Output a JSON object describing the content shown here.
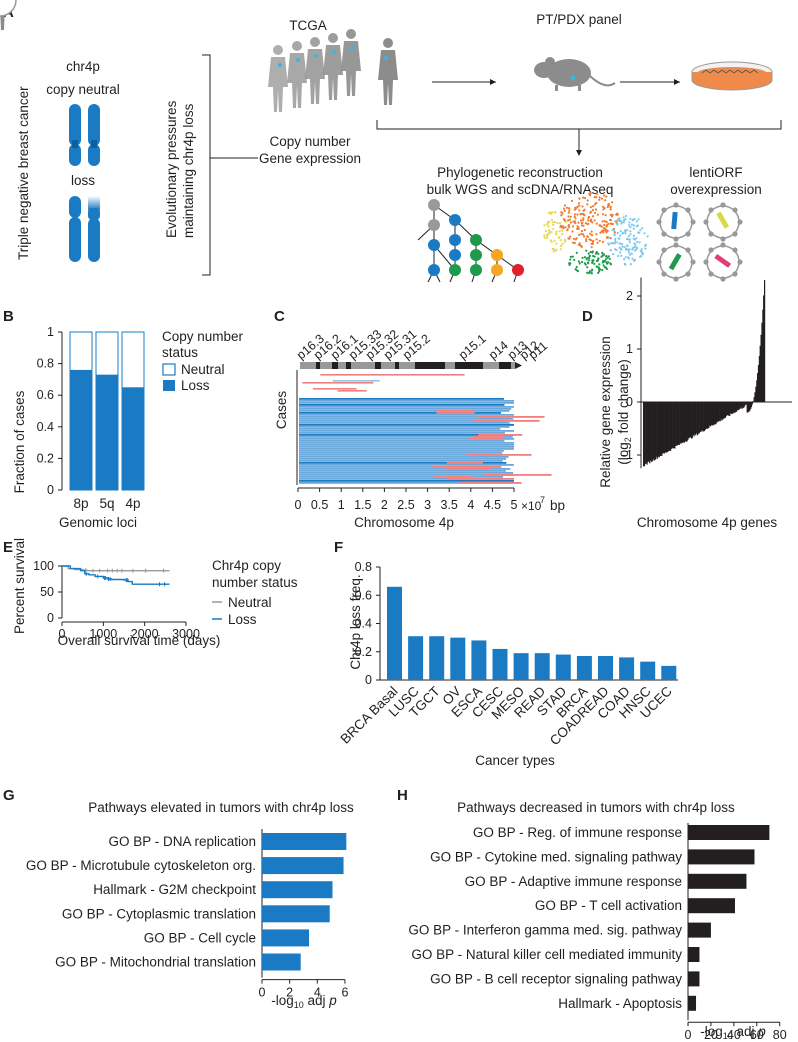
{
  "colors": {
    "blue": "#1a7bc4",
    "gray": "#999999",
    "dark": "#231f20",
    "green": "#1e9a4c",
    "orange": "#f5a623",
    "red": "#e0202b",
    "pink": "#f08080",
    "lightblue": "#8ec6ea",
    "figure_gray": "#8c8c8c"
  },
  "panelA": {
    "letter": "A",
    "tnbc_label": "Triple negative breast cancer",
    "chr_title_line1": "chr4p",
    "chr_title_line2": "copy neutral",
    "loss_label": "loss",
    "evo_line1": "Evolutionary pressures",
    "evo_line2": "maintaining chr4p loss",
    "tcga_title": "TCGA",
    "tcga_line1": "Copy number",
    "tcga_line2": "Gene expression",
    "ptpdx_title": "PT/PDX panel",
    "phylo_line1": "Phylogenetic reconstruction",
    "phylo_line2": "bulk WGS and scDNA/RNAseq",
    "lenti_line1": "lentiORF",
    "lenti_line2": "overexpression"
  },
  "panelB": {
    "letter": "B",
    "chart_data": {
      "type": "bar",
      "stacked": true,
      "categories": [
        "8p",
        "5q",
        "4p"
      ],
      "series": [
        {
          "name": "Loss",
          "values": [
            0.76,
            0.73,
            0.65
          ]
        },
        {
          "name": "Neutral",
          "values": [
            0.24,
            0.27,
            0.35
          ]
        }
      ],
      "ylabel": "Fraction of cases",
      "xlabel": "Genomic loci",
      "ylim": [
        0,
        1
      ],
      "yticks": [
        "0",
        "0.2",
        "0.4",
        "0.6",
        "0.8",
        "1"
      ],
      "legend_title_line1": "Copy number",
      "legend_title_line2": "status"
    }
  },
  "panelC": {
    "letter": "C",
    "chart_data": {
      "type": "heatmap",
      "bands": [
        "p16.3",
        "p16.2",
        "p16.1",
        "p15.33",
        "p15.32",
        "p15.31",
        "p15.2",
        "p15.1",
        "p14",
        "p13",
        "p12",
        "p11"
      ],
      "xticks": [
        "0",
        "0.5",
        "1",
        "1.5",
        "2",
        "2.5",
        "3",
        "3.5",
        "4",
        "4.5",
        "5"
      ],
      "x_unit_mult": "×10",
      "x_unit_exp": "7",
      "x_unit": "bp",
      "xlabel": "Chromosome 4p",
      "ylabel": "Cases",
      "xlim": [
        0,
        5
      ]
    }
  },
  "panelD": {
    "letter": "D",
    "chart_data": {
      "type": "bar",
      "ylabel_line1": "Relative gene expression",
      "ylabel_line2_pre": "(log",
      "ylabel_line2_sub": "2",
      "ylabel_line2_post": " fold change)",
      "xlabel": "Chromosome 4p genes",
      "yticks": [
        "2",
        "1",
        "0",
        "-1"
      ],
      "ylim": [
        -1.3,
        2.4
      ]
    }
  },
  "panelE": {
    "letter": "E",
    "chart_data": {
      "type": "line",
      "xlabel": "Overall survival time (days)",
      "ylabel": "Percent survival",
      "xticks": [
        "0",
        "1000",
        "2000",
        "3000"
      ],
      "yticks": [
        "0",
        "50",
        "100"
      ],
      "xlim": [
        0,
        3000
      ],
      "ylim": [
        0,
        100
      ],
      "legend_title_line1": "Chr4p copy",
      "legend_title_line2": "number status",
      "series": [
        {
          "name": "Neutral",
          "x": [
            0,
            150,
            300,
            500,
            600,
            2600
          ],
          "y": [
            100,
            95,
            93,
            92,
            91,
            91
          ]
        },
        {
          "name": "Loss",
          "x": [
            0,
            200,
            450,
            550,
            650,
            800,
            1000,
            1100,
            1200,
            1500,
            1600,
            1700,
            2600
          ],
          "y": [
            100,
            95,
            91,
            85,
            83,
            80,
            77,
            75,
            74,
            73,
            70,
            65,
            65
          ]
        }
      ]
    }
  },
  "panelF": {
    "letter": "F",
    "chart_data": {
      "type": "bar",
      "categories": [
        "BRCA Basal",
        "LUSC",
        "TGCT",
        "OV",
        "ESCA",
        "CESC",
        "MESO",
        "READ",
        "STAD",
        "BRCA",
        "COADREAD",
        "COAD",
        "HNSC",
        "UCEC"
      ],
      "values": [
        0.66,
        0.31,
        0.31,
        0.3,
        0.28,
        0.22,
        0.19,
        0.19,
        0.18,
        0.17,
        0.17,
        0.16,
        0.13,
        0.1
      ],
      "ylabel": "Chr4p loss freq.",
      "xlabel": "Cancer types",
      "yticks": [
        "0",
        "0.2",
        "0.4",
        "0.6",
        "0.8"
      ],
      "ylim": [
        0,
        0.8
      ]
    }
  },
  "panelG": {
    "letter": "G",
    "chart_data": {
      "type": "bar",
      "orientation": "horizontal",
      "title": "Pathways elevated in tumors with chr4p loss",
      "categories": [
        "GO BP - DNA replication",
        "GO BP - Microtubule cytoskeleton org.",
        "Hallmark - G2M checkpoint",
        "GO BP - Cytoplasmic translation",
        "GO BP - Cell cycle",
        "GO BP - Mitochondrial translation"
      ],
      "values": [
        6.1,
        5.9,
        5.1,
        4.9,
        3.4,
        2.8
      ],
      "xticks": [
        "0",
        "2",
        "4",
        "6"
      ],
      "xlim": [
        0,
        6.8
      ],
      "xlabel_pre": "-log",
      "xlabel_sub": "10",
      "xlabel_mid": " adj ",
      "xlabel_p": "p"
    }
  },
  "panelH": {
    "letter": "H",
    "chart_data": {
      "type": "bar",
      "orientation": "horizontal",
      "title": "Pathways decreased in tumors with chr4p loss",
      "categories": [
        "GO BP - Reg. of immune response",
        "GO BP - Cytokine med. signaling pathway",
        "GO BP - Adaptive immune response",
        "GO BP - T cell activation",
        "GO BP - Interferon gamma med. sig. pathway",
        "GO BP - Natural killer cell mediated immunity",
        "GO BP - B cell receptor signaling pathway",
        "Hallmark - Apoptosis"
      ],
      "values": [
        71,
        58,
        51,
        41,
        20,
        10,
        10,
        7
      ],
      "xticks": [
        "0",
        "20",
        "40",
        "60",
        "80"
      ],
      "xlim": [
        0,
        82
      ],
      "xlabel_pre": "-log",
      "xlabel_sub": "10",
      "xlabel_mid": " adj ",
      "xlabel_p": "p"
    }
  }
}
